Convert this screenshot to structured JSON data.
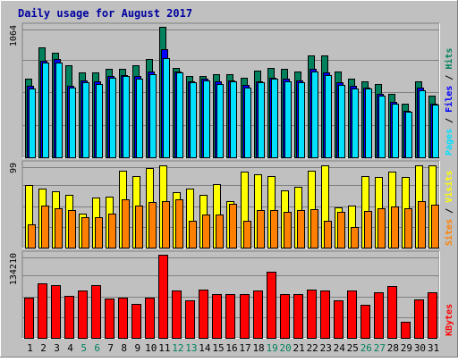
{
  "chart_data": {
    "type": "bar",
    "title": "Daily usage for August 2017",
    "categories": [
      "1",
      "2",
      "3",
      "4",
      "5",
      "6",
      "7",
      "8",
      "9",
      "10",
      "11",
      "12",
      "13",
      "14",
      "15",
      "16",
      "17",
      "18",
      "19",
      "20",
      "21",
      "22",
      "23",
      "24",
      "25",
      "26",
      "27",
      "28",
      "29",
      "30",
      "31"
    ],
    "weekend_days": [
      "5",
      "6",
      "12",
      "13",
      "19",
      "20",
      "26",
      "27"
    ],
    "panels": [
      {
        "id": "hits",
        "ylabel_parts": [
          "Pages",
          "Files",
          "Hits"
        ],
        "max_label": "1064",
        "ymax": 1064,
        "series": [
          {
            "name": "Hits",
            "color": "#00805c",
            "values": [
              640,
              900,
              850,
              750,
              690,
              690,
              720,
              720,
              750,
              800,
              1064,
              730,
              660,
              660,
              680,
              680,
              650,
              710,
              730,
              720,
              700,
              830,
              830,
              700,
              640,
              620,
              600,
              520,
              440,
              620,
              500
            ]
          },
          {
            "name": "Files",
            "color": "#0000ff",
            "values": [
              580,
              790,
              800,
              580,
              630,
              620,
              660,
              670,
              660,
              700,
              880,
              700,
              620,
              640,
              620,
              630,
              590,
              620,
              650,
              640,
              630,
              720,
              690,
              610,
              580,
              570,
              520,
              450,
              380,
              570,
              440
            ]
          },
          {
            "name": "Pages",
            "color": "#00e0ff",
            "values": [
              560,
              770,
              770,
              570,
              610,
              600,
              650,
              660,
              640,
              680,
              810,
              690,
              610,
              630,
              600,
              620,
              570,
              610,
              640,
              620,
              610,
              700,
              670,
              590,
              560,
              560,
              500,
              440,
              370,
              550,
              430
            ]
          }
        ]
      },
      {
        "id": "visits",
        "ylabel_parts": [
          "Sites",
          "Visits"
        ],
        "max_label": "99",
        "ymax": 99,
        "series": [
          {
            "name": "Visits",
            "color": "#ffff00",
            "values": [
              75,
              70,
              67,
              63,
              40,
              60,
              61,
              92,
              85,
              95,
              98,
              66,
              70,
              63,
              76,
              55,
              90,
              87,
              85,
              68,
              72,
              92,
              98,
              48,
              50,
              85,
              84,
              90,
              84,
              98,
              98
            ]
          },
          {
            "name": "Sites",
            "color": "#ff8000",
            "values": [
              28,
              50,
              47,
              45,
              36,
              36,
              40,
              57,
              50,
              54,
              55,
              57,
              32,
              39,
              39,
              52,
              32,
              45,
              45,
              43,
              45,
              46,
              32,
              43,
              25,
              44,
              47,
              49,
              47,
              55,
              51
            ]
          }
        ]
      },
      {
        "id": "kbytes",
        "ylabel_parts": [
          "KBytes"
        ],
        "max_label": "134210",
        "ymax": 134210,
        "series": [
          {
            "name": "KBytes",
            "color": "#ff0000",
            "values": [
              65000,
              88000,
              85000,
              68000,
              76000,
              85000,
              64000,
              65000,
              55000,
              65000,
              134210,
              77000,
              61000,
              78000,
              71000,
              71000,
              70000,
              76000,
              107000,
              70000,
              70000,
              78000,
              76000,
              61000,
              76000,
              53000,
              73000,
              84000,
              26000,
              62000,
              73000
            ]
          }
        ]
      }
    ]
  }
}
